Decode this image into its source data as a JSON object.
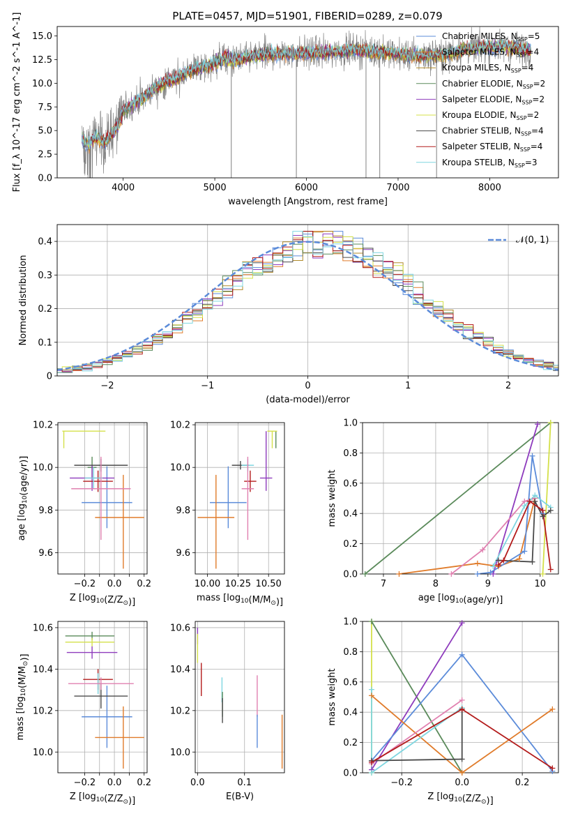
{
  "figure": {
    "title": "PLATE=0457, MJD=51901, FIBERID=0289, z=0.079"
  },
  "colors": {
    "Chabrier MILES": "#5b8bd9",
    "Salpeter MILES": "#e07b2a",
    "Kroupa MILES": "#b08a2a",
    "Chabrier ELODIE": "#5a8a5a",
    "Salpeter ELODIE": "#8e3bbd",
    "Kroupa ELODIE": "#d4e04a",
    "Chabrier STELIB": "#4a4a4a",
    "Salpeter STELIB": "#b31b1b",
    "Kroupa STELIB": "#7fd6e0",
    "pink": "#e080b0",
    "data": "#808080"
  },
  "chart_data": [
    {
      "id": "spectrum",
      "type": "line",
      "title": "PLATE=0457, MJD=51901, FIBERID=0289, z=0.079",
      "xlabel": "wavelength [Angstrom, rest frame]",
      "ylabel": "Flux [f_λ 10^-17 erg cm^-2 s^-1 A^-1]",
      "xlim": [
        3280,
        8750
      ],
      "ylim": [
        0,
        16
      ],
      "xticks": [
        4000,
        5000,
        6000,
        7000,
        8000
      ],
      "yticks": [
        0.0,
        2.5,
        5.0,
        7.5,
        10.0,
        12.5,
        15.0
      ],
      "legend_position": "right",
      "continuum_points": [
        [
          3550,
          4.0
        ],
        [
          3620,
          3.5
        ],
        [
          3700,
          4.3
        ],
        [
          3800,
          3.8
        ],
        [
          3900,
          5.0
        ],
        [
          3950,
          5.6
        ],
        [
          4000,
          7.0
        ],
        [
          4100,
          7.8
        ],
        [
          4200,
          8.3
        ],
        [
          4300,
          9.2
        ],
        [
          4400,
          9.8
        ],
        [
          4500,
          10.3
        ],
        [
          4600,
          10.5
        ],
        [
          4700,
          11.2
        ],
        [
          4800,
          11.6
        ],
        [
          4900,
          11.7
        ],
        [
          5000,
          12.1
        ],
        [
          5100,
          12.7
        ],
        [
          5200,
          12.4
        ],
        [
          5300,
          12.6
        ],
        [
          5500,
          13.0
        ],
        [
          5700,
          13.1
        ],
        [
          5900,
          13.2
        ],
        [
          6100,
          13.2
        ],
        [
          6300,
          13.3
        ],
        [
          6500,
          13.5
        ],
        [
          6700,
          13.4
        ],
        [
          6900,
          13.2
        ],
        [
          7100,
          13.0
        ],
        [
          7300,
          12.9
        ],
        [
          7500,
          13.0
        ],
        [
          7700,
          13.5
        ],
        [
          7900,
          13.8
        ],
        [
          8100,
          13.9
        ],
        [
          8300,
          13.7
        ],
        [
          8450,
          13.5
        ]
      ],
      "spikes": [
        5180,
        5890,
        6650,
        6800,
        7420
      ],
      "series": [
        {
          "name": "Chabrier MILES",
          "nssp": "5"
        },
        {
          "name": "Salpeter MILES",
          "nssp": "4"
        },
        {
          "name": "Kroupa MILES",
          "nssp": "4"
        },
        {
          "name": "Chabrier ELODIE",
          "nssp": "2"
        },
        {
          "name": "Salpeter ELODIE",
          "nssp": "2"
        },
        {
          "name": "Kroupa ELODIE",
          "nssp": "2"
        },
        {
          "name": "Chabrier STELIB",
          "nssp": "4"
        },
        {
          "name": "Salpeter STELIB",
          "nssp": "4"
        },
        {
          "name": "Kroupa STELIB",
          "nssp": "3"
        }
      ]
    },
    {
      "id": "residuals",
      "type": "histogram",
      "xlabel": "(data-model)/error",
      "ylabel": "Normed distribution",
      "xlim": [
        -2.5,
        2.5
      ],
      "ylim": [
        0,
        0.45
      ],
      "xticks": [
        -2,
        -1,
        0,
        1,
        2
      ],
      "yticks": [
        0.0,
        0.1,
        0.2,
        0.3,
        0.4
      ],
      "legend": "𝒩(0, 1)",
      "legend_position": "top-right",
      "bin_width": 0.1
    },
    {
      "id": "age_vs_Z",
      "type": "errorbar",
      "xlabel": "Z [log10(Z/Z⊙)]",
      "ylabel": "age  [log10(age/yr)]",
      "xlim": [
        -0.38,
        0.22
      ],
      "ylim": [
        9.5,
        10.21
      ],
      "xticks": [
        -0.2,
        -0.1,
        0.0,
        0.1,
        0.2
      ],
      "xticklabels": [
        "−0.2",
        "",
        "0.0",
        "",
        "0.2"
      ],
      "yticks": [
        9.6,
        9.8,
        10.0,
        10.2
      ],
      "points": [
        {
          "series": "Chabrier MILES",
          "x": -0.05,
          "xerr": 0.17,
          "y": 9.835,
          "yerr": [
            0.12,
            0.17
          ]
        },
        {
          "series": "Salpeter MILES",
          "x": 0.06,
          "xerr": [
            0.19,
            0.14
          ],
          "y": 9.765,
          "yerr": [
            0.24,
            0.2
          ]
        },
        {
          "series": "Chabrier ELODIE",
          "x": -0.15,
          "xerr": 0.03,
          "y": 10.0,
          "yerr": 0.05
        },
        {
          "series": "Salpeter ELODIE",
          "x": -0.15,
          "xerr": 0.15,
          "y": 9.95,
          "yerr": 0.06
        },
        {
          "series": "Kroupa ELODIE",
          "x": -0.34,
          "xerr": [
            0.01,
            0.28
          ],
          "y": 10.17,
          "yerr": [
            0.08,
            0.0
          ]
        },
        {
          "series": "Chabrier STELIB",
          "x": -0.09,
          "xerr": 0.18,
          "y": 10.01,
          "yerr": 0.03
        },
        {
          "series": "Salpeter STELIB",
          "x": -0.11,
          "xerr": 0.1,
          "y": 9.935,
          "yerr": 0.05
        },
        {
          "series": "Kroupa STELIB",
          "x": -0.14,
          "xerr": 0.06,
          "y": 9.95,
          "yerr": 0.05
        },
        {
          "series": "pink",
          "x": -0.09,
          "xerr": 0.2,
          "y": 9.9,
          "yerr": [
            0.24,
            0.15
          ]
        }
      ]
    },
    {
      "id": "age_vs_mass",
      "type": "errorbar",
      "xlabel": "mass [log10(M/M⊙)]",
      "ylabel": "",
      "xlim": [
        9.9,
        10.63
      ],
      "ylim": [
        9.5,
        10.21
      ],
      "xticks": [
        10.0,
        10.25,
        10.5
      ],
      "xticklabels": [
        "10.00",
        "10.25",
        "10.50"
      ],
      "yticks": [
        9.6,
        9.8,
        10.0,
        10.2
      ],
      "points": [
        {
          "series": "Chabrier MILES",
          "x": 10.17,
          "xerr": 0.15,
          "y": 9.835,
          "yerr": [
            0.12,
            0.17
          ]
        },
        {
          "series": "Salpeter MILES",
          "x": 10.07,
          "xerr": 0.15,
          "y": 9.765,
          "yerr": [
            0.24,
            0.2
          ]
        },
        {
          "series": "Chabrier ELODIE",
          "x": 10.56,
          "xerr": 0.0,
          "y": 10.17,
          "yerr": [
            0.08,
            0.0
          ]
        },
        {
          "series": "Salpeter ELODIE",
          "x": 10.48,
          "xerr": 0.05,
          "y": 9.95,
          "yerr": [
            0.06,
            0.22
          ]
        },
        {
          "series": "Kroupa ELODIE",
          "x": 10.53,
          "xerr": 0.04,
          "y": 10.17,
          "yerr": [
            0.08,
            0.0
          ]
        },
        {
          "series": "Chabrier STELIB",
          "x": 10.27,
          "xerr": 0.07,
          "y": 10.01,
          "yerr": 0.02
        },
        {
          "series": "Salpeter STELIB",
          "x": 10.35,
          "xerr": 0.05,
          "y": 9.935,
          "yerr": 0.05
        },
        {
          "series": "Kroupa STELIB",
          "x": 10.33,
          "xerr": 0.05,
          "y": 10.01,
          "yerr": 0.03
        },
        {
          "series": "pink",
          "x": 10.33,
          "xerr": 0.05,
          "y": 9.9,
          "yerr": [
            0.24,
            0.15
          ]
        }
      ]
    },
    {
      "id": "mw_vs_age",
      "type": "line",
      "xlabel": "age  [log10(age/yr)]",
      "ylabel": "mass weight",
      "xlim": [
        6.6,
        10.35
      ],
      "ylim": [
        0,
        1.0
      ],
      "xticks": [
        7,
        8,
        9,
        10
      ],
      "yticks": [
        0.0,
        0.2,
        0.4,
        0.6,
        0.8,
        1.0
      ],
      "series": [
        {
          "series": "Chabrier ELODIE",
          "points": [
            [
              6.65,
              0.0
            ],
            [
              10.2,
              1.0
            ]
          ]
        },
        {
          "series": "Salpeter ELODIE",
          "points": [
            [
              9.1,
              0.0
            ],
            [
              9.95,
              0.99
            ]
          ]
        },
        {
          "series": "Kroupa ELODIE",
          "points": [
            [
              10.05,
              0.0
            ],
            [
              10.2,
              1.0
            ]
          ]
        },
        {
          "series": "Salpeter MILES",
          "points": [
            [
              7.3,
              0.0
            ],
            [
              8.8,
              0.07
            ],
            [
              9.2,
              0.05
            ],
            [
              9.6,
              0.1
            ],
            [
              9.9,
              0.5
            ]
          ]
        },
        {
          "series": "Chabrier MILES",
          "points": [
            [
              8.8,
              0.0
            ],
            [
              9.05,
              0.01
            ],
            [
              9.7,
              0.15
            ],
            [
              9.85,
              0.78
            ],
            [
              10.05,
              0.4
            ]
          ]
        },
        {
          "series": "pink",
          "points": [
            [
              8.3,
              0.0
            ],
            [
              8.9,
              0.16
            ],
            [
              9.7,
              0.48
            ],
            [
              9.9,
              0.5
            ]
          ]
        },
        {
          "series": "Kroupa STELIB",
          "points": [
            [
              9.1,
              0.05
            ],
            [
              9.7,
              0.45
            ],
            [
              9.9,
              0.52
            ],
            [
              10.2,
              0.44
            ]
          ]
        },
        {
          "series": "Chabrier STELIB",
          "points": [
            [
              9.2,
              0.09
            ],
            [
              9.85,
              0.08
            ],
            [
              9.9,
              0.48
            ],
            [
              10.05,
              0.38
            ],
            [
              10.2,
              0.42
            ]
          ]
        },
        {
          "series": "Salpeter STELIB",
          "points": [
            [
              9.2,
              0.06
            ],
            [
              9.3,
              0.09
            ],
            [
              9.8,
              0.48
            ],
            [
              10.05,
              0.42
            ],
            [
              10.2,
              0.03
            ]
          ]
        }
      ]
    },
    {
      "id": "mass_vs_Z",
      "type": "errorbar",
      "xlabel": "Z [log10(Z/Z⊙)]",
      "ylabel": "mass [log10(M/M⊙)]",
      "xlim": [
        -0.38,
        0.22
      ],
      "ylim": [
        9.9,
        10.63
      ],
      "xticks": [
        -0.2,
        -0.1,
        0.0,
        0.1,
        0.2
      ],
      "xticklabels": [
        "−0.2",
        "",
        "0.0",
        "",
        "0.2"
      ],
      "yticks": [
        10.0,
        10.2,
        10.4,
        10.6
      ],
      "points": [
        {
          "series": "Chabrier MILES",
          "x": -0.05,
          "xerr": 0.17,
          "y": 10.17,
          "yerr": 0.15
        },
        {
          "series": "Salpeter MILES",
          "x": 0.06,
          "xerr": [
            0.19,
            0.14
          ],
          "y": 10.07,
          "yerr": 0.15
        },
        {
          "series": "Chabrier ELODIE",
          "x": -0.15,
          "xerr": [
            0.18,
            0.15
          ],
          "y": 10.56,
          "yerr": 0.02
        },
        {
          "series": "Salpeter ELODIE",
          "x": -0.15,
          "xerr": 0.17,
          "y": 10.48,
          "yerr": 0.03
        },
        {
          "series": "Kroupa ELODIE",
          "x": -0.15,
          "xerr": [
            0.18,
            0.15
          ],
          "y": 10.53,
          "yerr": 0.02
        },
        {
          "series": "Chabrier STELIB",
          "x": -0.09,
          "xerr": 0.18,
          "y": 10.27,
          "yerr": 0.06
        },
        {
          "series": "Salpeter STELIB",
          "x": -0.11,
          "xerr": 0.1,
          "y": 10.35,
          "yerr": 0.05
        },
        {
          "series": "Kroupa STELIB",
          "x": -0.11,
          "xerr": 0.06,
          "y": 10.33,
          "yerr": 0.05
        },
        {
          "series": "pink",
          "x": -0.09,
          "xerr": 0.22,
          "y": 10.33,
          "yerr": 0.03
        }
      ]
    },
    {
      "id": "mass_vs_EBV",
      "type": "errorbar",
      "xlabel": "E(B-V)",
      "ylabel": "",
      "xlim": [
        -0.005,
        0.185
      ],
      "ylim": [
        9.9,
        10.63
      ],
      "xticks": [
        0.0,
        0.1
      ],
      "xticklabels": [
        "0.0",
        "0.1"
      ],
      "yticks": [
        10.0,
        10.2,
        10.4,
        10.6
      ],
      "points": [
        {
          "series": "Salpeter ELODIE",
          "x": 0.0,
          "y": 10.56,
          "yerr": 0.04
        },
        {
          "series": "Kroupa ELODIE",
          "x": 0.0,
          "y": 10.5,
          "yerr": 0.07
        },
        {
          "series": "Salpeter STELIB",
          "x": 0.008,
          "y": 10.35,
          "yerr": 0.08
        },
        {
          "series": "Kroupa STELIB",
          "x": 0.052,
          "y": 10.3,
          "yerr": 0.06
        },
        {
          "series": "Chabrier ELODIE",
          "x": 0.053,
          "y": 10.23,
          "yerr": 0.06
        },
        {
          "series": "Chabrier STELIB",
          "x": 0.053,
          "y": 10.2,
          "yerr": 0.06
        },
        {
          "series": "pink",
          "x": 0.127,
          "y": 10.27,
          "yerr": 0.1
        },
        {
          "series": "Chabrier MILES",
          "x": 0.127,
          "y": 10.1,
          "yerr": 0.08
        },
        {
          "series": "Salpeter MILES",
          "x": 0.18,
          "y": 10.05,
          "yerr": 0.13
        }
      ]
    },
    {
      "id": "mw_vs_Z",
      "type": "line",
      "xlabel": "Z [log10(Z/Z⊙)]",
      "ylabel": "mass weight",
      "xlim": [
        -0.33,
        0.32
      ],
      "ylim": [
        0,
        1.0
      ],
      "xticks": [
        -0.2,
        0.0,
        0.2
      ],
      "xticklabels": [
        "−0.2",
        "0.0",
        "0.2"
      ],
      "yticks": [
        0.0,
        0.2,
        0.4,
        0.6,
        0.8,
        1.0
      ],
      "series": [
        {
          "series": "Kroupa ELODIE",
          "points": [
            [
              -0.3,
              1.0
            ],
            [
              -0.3,
              0.0
            ]
          ]
        },
        {
          "series": "Chabrier ELODIE",
          "points": [
            [
              -0.3,
              1.0
            ],
            [
              0.0,
              0.0
            ]
          ]
        },
        {
          "series": "Salpeter ELODIE",
          "points": [
            [
              -0.3,
              0.02
            ],
            [
              0.0,
              0.99
            ]
          ]
        },
        {
          "series": "Chabrier MILES",
          "points": [
            [
              -0.3,
              0.08
            ],
            [
              0.0,
              0.78
            ],
            [
              0.3,
              0.01
            ]
          ]
        },
        {
          "series": "Salpeter MILES",
          "points": [
            [
              -0.3,
              0.51
            ],
            [
              0.0,
              0.0
            ],
            [
              0.3,
              0.42
            ]
          ]
        },
        {
          "series": "pink",
          "points": [
            [
              -0.3,
              0.06
            ],
            [
              0.0,
              0.48
            ]
          ]
        },
        {
          "series": "Kroupa STELIB",
          "points": [
            [
              -0.3,
              0.55
            ],
            [
              -0.3,
              0.0
            ],
            [
              0.0,
              0.43
            ]
          ]
        },
        {
          "series": "Chabrier STELIB",
          "points": [
            [
              -0.3,
              0.08
            ],
            [
              0.0,
              0.09
            ],
            [
              0.0,
              0.42
            ]
          ]
        },
        {
          "series": "Salpeter STELIB",
          "points": [
            [
              -0.3,
              0.07
            ],
            [
              0.0,
              0.42
            ],
            [
              0.3,
              0.03
            ]
          ]
        }
      ]
    }
  ]
}
